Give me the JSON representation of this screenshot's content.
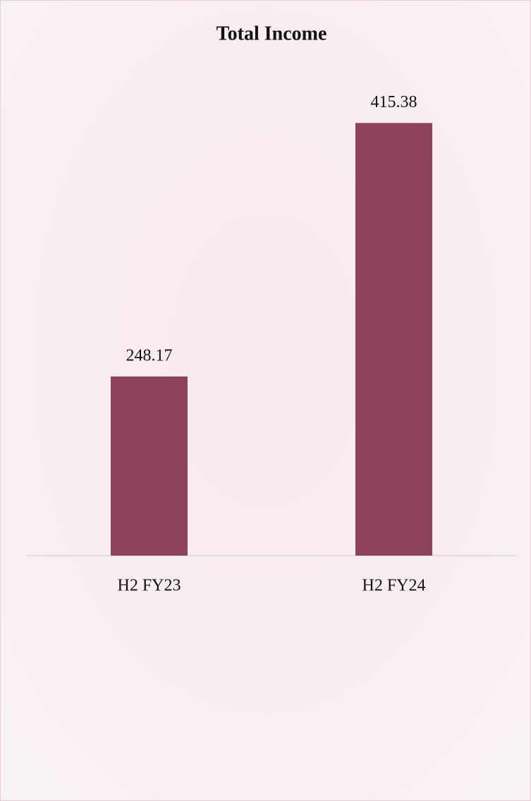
{
  "chart_data": {
    "type": "bar",
    "title": "Total Income",
    "categories": [
      "H2 FY23",
      "H2 FY24"
    ],
    "values": [
      248.17,
      415.38
    ],
    "color": "#8e4259",
    "ylim": [
      130,
      450
    ]
  }
}
